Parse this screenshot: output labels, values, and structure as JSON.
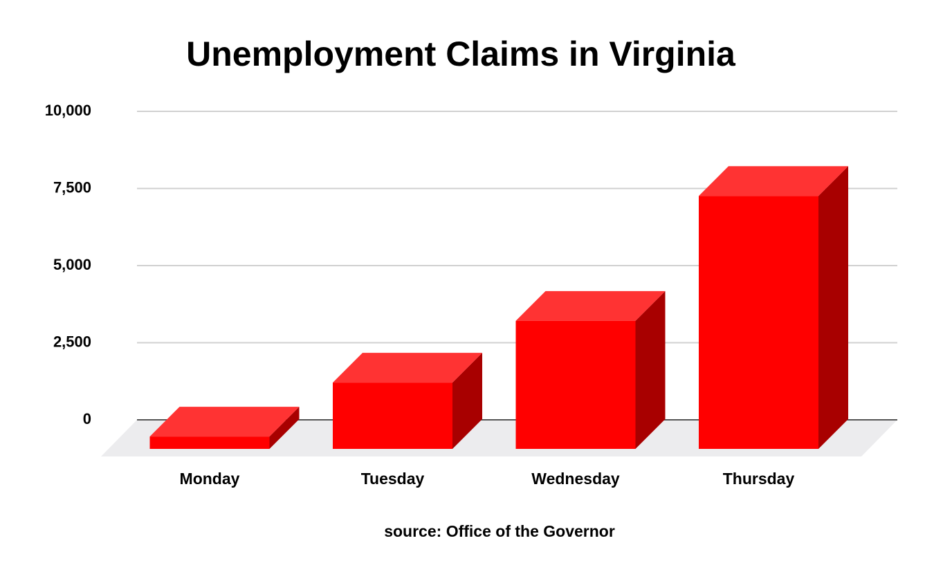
{
  "chart_data": {
    "type": "bar3d",
    "title": "Unemployment Claims in Virginia",
    "source": "source: Office of the Governor",
    "categories": [
      "Monday",
      "Tuesday",
      "Wednesday",
      "Thursday"
    ],
    "values": [
      400,
      2150,
      4150,
      8200
    ],
    "color": "#ff0000",
    "ylim": [
      0,
      10000
    ],
    "yticks": [
      0,
      {
        "value": 2500,
        "label": "2,500"
      },
      {
        "value": 5000,
        "label": "5,000"
      },
      {
        "value": 7500,
        "label": "7,500"
      },
      {
        "value": 10000,
        "label": "10,000"
      }
    ],
    "grid": true
  }
}
